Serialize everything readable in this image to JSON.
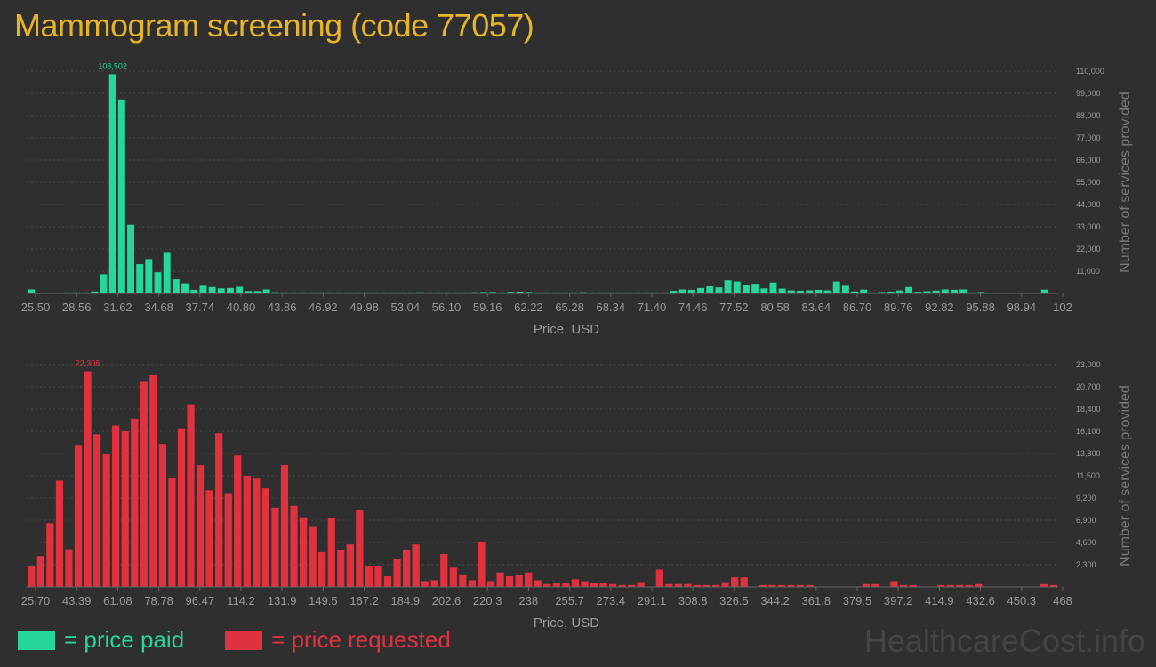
{
  "title": "Mammogram screening (code 77057)",
  "watermark": "HealthcareCost.info",
  "colors": {
    "background": "#2f2f2f",
    "title": "#e8b52a",
    "paid": "#26d69a",
    "requested": "#e0313f",
    "grid": "#4a4a4a",
    "axis_text": "#9a9a9a",
    "watermark": "#444444"
  },
  "legend": {
    "paid_label": "= price paid",
    "requested_label": "= price requested"
  },
  "chart_data": [
    {
      "type": "bar",
      "name": "price paid",
      "color": "#26d69a",
      "xlabel": "Price, USD",
      "ylabel": "Number of services provided",
      "ylim": [
        0,
        110000
      ],
      "yticks": [
        "11,000",
        "22,000",
        "33,000",
        "44,000",
        "55,000",
        "66,000",
        "77,000",
        "88,000",
        "99,000",
        "110,000"
      ],
      "xticks": [
        "25.50",
        "28.56",
        "31.62",
        "34.68",
        "37.74",
        "40.80",
        "43.86",
        "46.92",
        "49.98",
        "53.04",
        "56.10",
        "59.16",
        "62.22",
        "65.28",
        "68.34",
        "71.40",
        "74.46",
        "77.52",
        "80.58",
        "83.64",
        "86.70",
        "89.76",
        "92.82",
        "95.88",
        "98.94",
        "102"
      ],
      "grid": true,
      "peak_label": "108,502",
      "peak_index": 9,
      "values": [
        2000,
        0,
        0,
        400,
        500,
        500,
        500,
        1000,
        9500,
        108502,
        96000,
        34000,
        14500,
        17000,
        10500,
        20500,
        7000,
        5000,
        1800,
        3800,
        3200,
        2500,
        2700,
        3300,
        1200,
        1200,
        2000,
        600,
        500,
        500,
        500,
        500,
        500,
        500,
        500,
        500,
        500,
        500,
        500,
        500,
        500,
        500,
        500,
        600,
        500,
        500,
        500,
        500,
        500,
        600,
        700,
        700,
        500,
        800,
        900,
        700,
        500,
        500,
        500,
        500,
        500,
        600,
        500,
        500,
        500,
        500,
        500,
        500,
        500,
        500,
        500,
        1300,
        2000,
        1800,
        2700,
        3500,
        3000,
        6500,
        5900,
        4000,
        4800,
        2500,
        5400,
        2400,
        1500,
        1400,
        1500,
        1800,
        1500,
        5900,
        3800,
        1000,
        1900,
        500,
        700,
        900,
        1500,
        3200,
        800,
        1100,
        1400,
        2000,
        1800,
        2000,
        500,
        700,
        0,
        0,
        0,
        0,
        0,
        0,
        1900,
        0
      ]
    },
    {
      "type": "bar",
      "name": "price requested",
      "color": "#e0313f",
      "xlabel": "Price, USD",
      "ylabel": "Number of services provided",
      "ylim": [
        0,
        23000
      ],
      "yticks": [
        "2,300",
        "4,600",
        "6,900",
        "9,200",
        "11,500",
        "13,800",
        "16,100",
        "18,400",
        "20,700",
        "23,000"
      ],
      "xticks": [
        "25.70",
        "43.39",
        "61.08",
        "78.78",
        "96.47",
        "114.2",
        "131.9",
        "149.5",
        "167.2",
        "184.9",
        "202.6",
        "220.3",
        "238",
        "255.7",
        "273.4",
        "291.1",
        "308.8",
        "326.5",
        "344.2",
        "361.8",
        "379.5",
        "397.2",
        "414.9",
        "432.6",
        "450.3",
        "468"
      ],
      "grid": true,
      "peak_label": "22,308",
      "peak_index": 6,
      "values": [
        2200,
        3200,
        6600,
        11000,
        3900,
        14700,
        22308,
        15800,
        13800,
        16700,
        16100,
        17400,
        21300,
        21900,
        14800,
        11300,
        16400,
        18900,
        12600,
        10000,
        15900,
        9700,
        13600,
        11500,
        11200,
        10200,
        8200,
        12600,
        8400,
        7200,
        6200,
        3600,
        7100,
        3800,
        4400,
        7900,
        2200,
        2200,
        1100,
        2900,
        3800,
        4400,
        600,
        700,
        3400,
        2000,
        1300,
        700,
        4700,
        600,
        1500,
        1100,
        1200,
        1500,
        700,
        300,
        400,
        400,
        800,
        600,
        400,
        400,
        300,
        200,
        200,
        500,
        0,
        1800,
        300,
        300,
        300,
        200,
        200,
        200,
        500,
        1000,
        1000,
        0,
        200,
        200,
        200,
        200,
        200,
        200,
        0,
        0,
        0,
        0,
        0,
        300,
        300,
        0,
        600,
        200,
        200,
        0,
        0,
        200,
        200,
        200,
        200,
        300,
        0,
        0,
        0,
        0,
        0,
        0,
        300,
        200
      ]
    }
  ]
}
